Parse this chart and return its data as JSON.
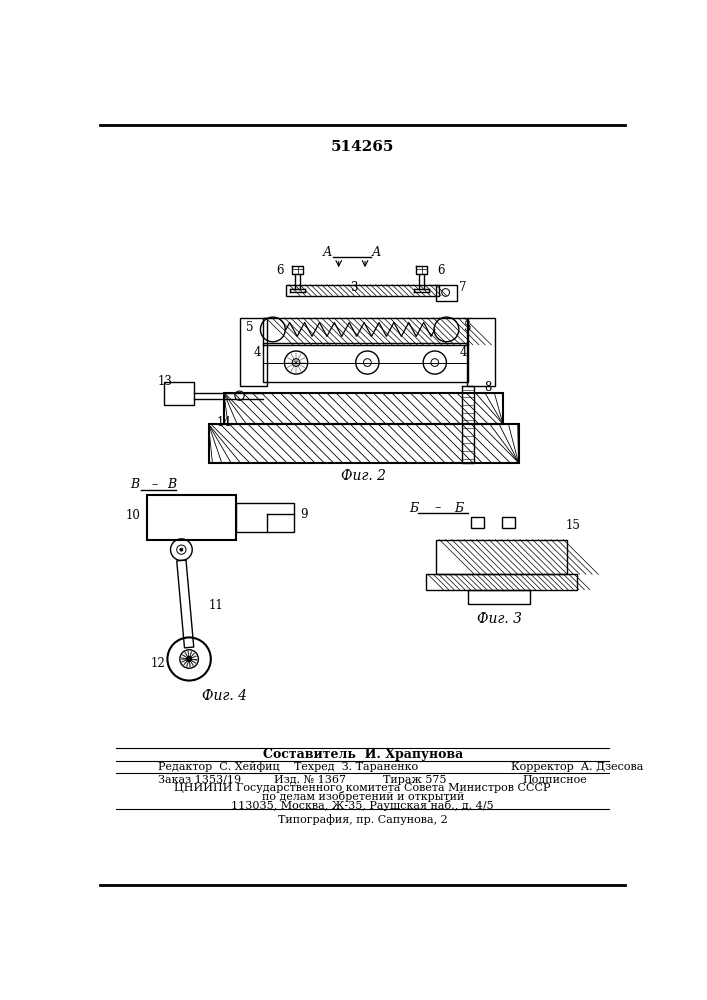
{
  "patent_number": "514265",
  "composer_line": "Составитель  И. Храпунова",
  "editor_label": "Редактор  С. Хейфиц",
  "techred_label": "Техред  З. Тараненко",
  "corrector_label": "Корректор  А. Дзесова",
  "order_text": "Заказ 1353/19",
  "izd_text": "Изд. № 1367",
  "tirazh_text": "Тираж 575",
  "podpisnoe_text": "Подписное",
  "tsniipi_line1": "ЦНИИПИ Государственного комитета Совета Министров СССР",
  "tsniipi_line2": "по делам изобретений и открытий",
  "tsniipi_line3": "113035, Москва, Ж-35, Раушская наб., д. 4/5",
  "typography_line": "Типография, пр. Сапунова, 2",
  "bg_color": "#ffffff"
}
